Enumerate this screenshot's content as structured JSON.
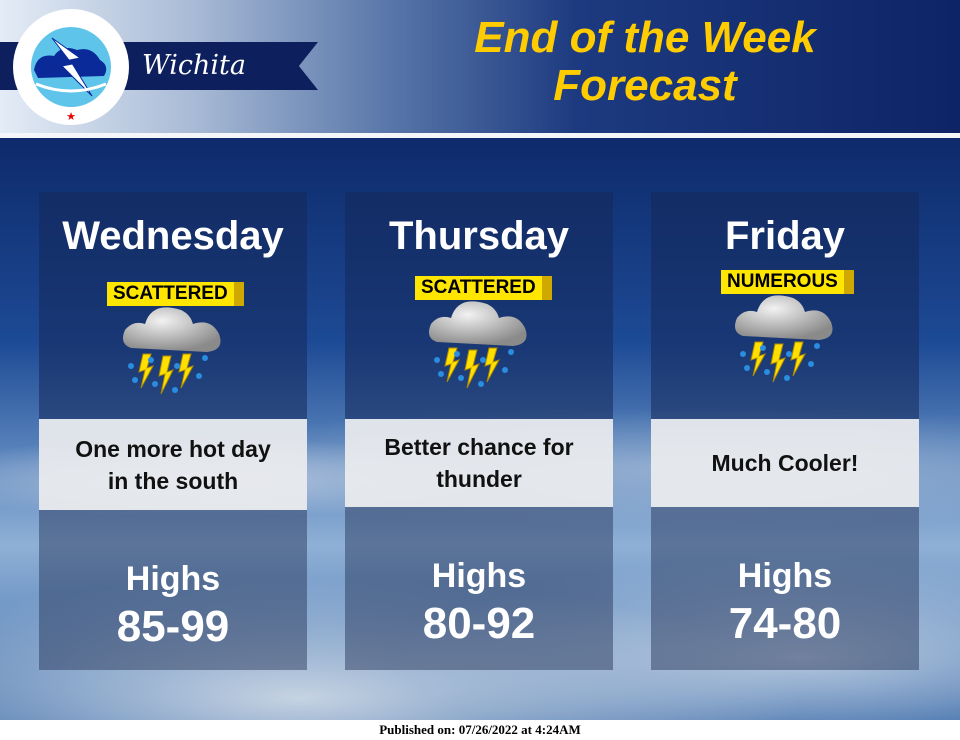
{
  "header": {
    "office": "Wichita",
    "logo_text": "NATIONAL WEATHER SERVICE",
    "title_line1": "End of the Week",
    "title_line2": "Forecast"
  },
  "colors": {
    "title": "#ffcc00",
    "badge": "#ffe600",
    "banner": "#0d1f5c"
  },
  "days": [
    {
      "day": "Wednesday",
      "coverage": "SCATTERED",
      "icon": "thunderstorm-icon",
      "text": "One more hot day in the south",
      "highs_label": "Highs",
      "highs": "85-99"
    },
    {
      "day": "Thursday",
      "coverage": "SCATTERED",
      "icon": "thunderstorm-icon",
      "text": "Better chance for thunder",
      "highs_label": "Highs",
      "highs": "80-92"
    },
    {
      "day": "Friday",
      "coverage": "NUMEROUS",
      "icon": "thunderstorm-icon",
      "text": "Much Cooler!",
      "highs_label": "Highs",
      "highs": "74-80"
    }
  ],
  "footer": {
    "published": "Published on: 07/26/2022 at 4:24AM"
  }
}
